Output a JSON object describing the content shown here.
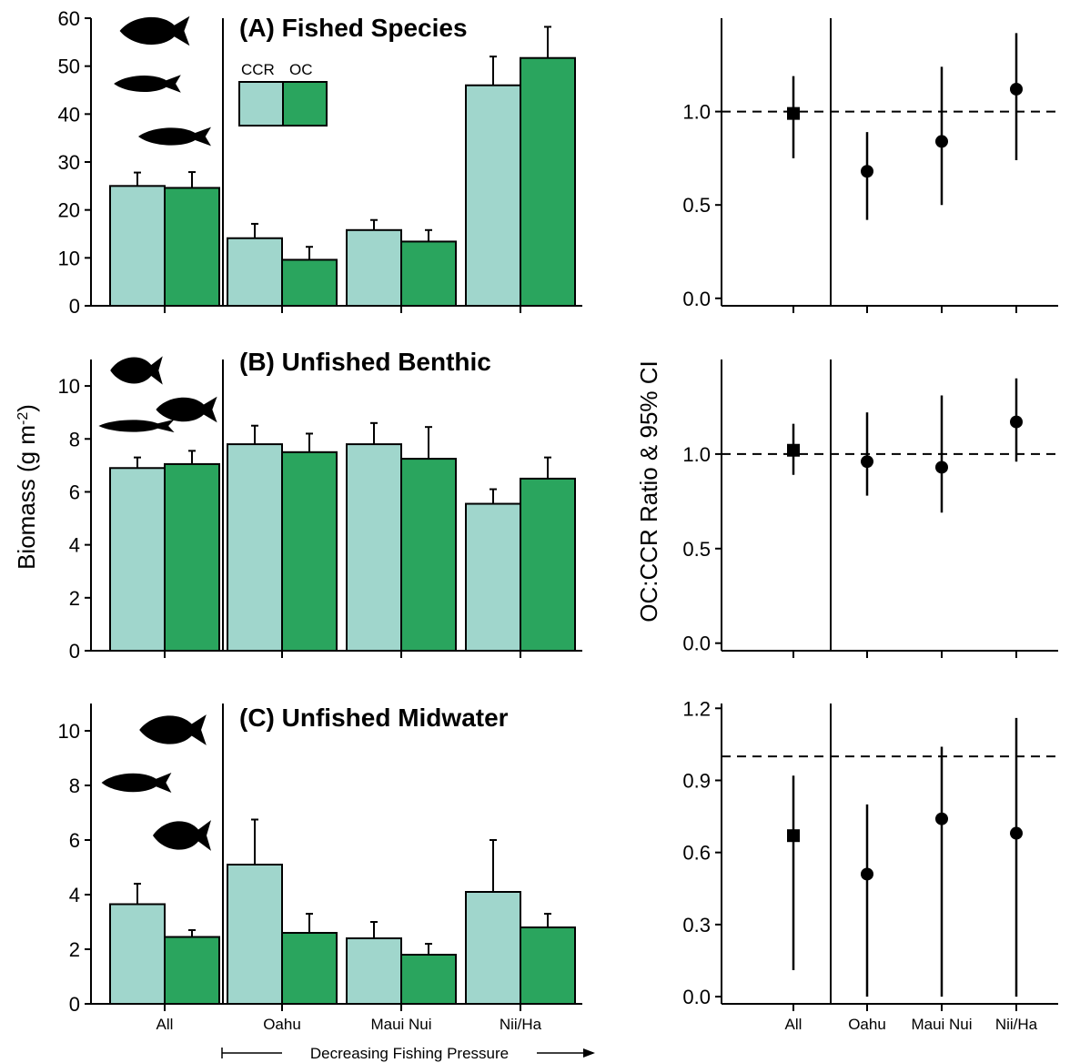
{
  "y_axis_label_left": "Biomass (g m",
  "y_axis_label_left_sup": "-2",
  "y_axis_label_left_close": ")",
  "y_axis_label_right": "OC:CCR Ratio & 95% CI",
  "fishing_pressure_label": "Decreasing Fishing Pressure",
  "legend": {
    "labels": [
      "CCR",
      "OC"
    ]
  },
  "colors": {
    "CCR": "#a0d6cc",
    "OC": "#2aa55e",
    "outline": "#000000"
  },
  "icons": [
    "fish-silhouette-icon"
  ],
  "chart_data": [
    {
      "type": "bar",
      "title": "(A) Fished Species",
      "categories": [
        "All",
        "Oahu",
        "Maui Nui",
        "Nii/Ha"
      ],
      "ylim": [
        0,
        60
      ],
      "yticks": [
        "0",
        "10",
        "20",
        "30",
        "40",
        "50",
        "60"
      ],
      "series": [
        {
          "name": "CCR",
          "values": [
            25.0,
            14.1,
            15.8,
            46.0
          ],
          "error_upper": [
            27.8,
            17.1,
            17.9,
            52.0
          ]
        },
        {
          "name": "OC",
          "values": [
            24.6,
            9.6,
            13.4,
            51.7
          ],
          "error_upper": [
            27.9,
            12.3,
            15.8,
            58.2
          ]
        }
      ]
    },
    {
      "type": "bar",
      "title": "(B) Unfished Benthic",
      "categories": [
        "All",
        "Oahu",
        "Maui Nui",
        "Nii/Ha"
      ],
      "ylim": [
        0,
        11
      ],
      "yticks": [
        "0",
        "2",
        "4",
        "6",
        "8",
        "10"
      ],
      "series": [
        {
          "name": "CCR",
          "values": [
            6.9,
            7.8,
            7.8,
            5.55
          ],
          "error_upper": [
            7.3,
            8.5,
            8.6,
            6.1
          ]
        },
        {
          "name": "OC",
          "values": [
            7.05,
            7.5,
            7.25,
            6.5
          ],
          "error_upper": [
            7.55,
            8.2,
            8.45,
            7.3
          ]
        }
      ]
    },
    {
      "type": "bar",
      "title": "(C) Unfished Midwater",
      "categories": [
        "All",
        "Oahu",
        "Maui Nui",
        "Nii/Ha"
      ],
      "ylim": [
        0,
        11
      ],
      "yticks": [
        "0",
        "2",
        "4",
        "6",
        "8",
        "10"
      ],
      "series": [
        {
          "name": "CCR",
          "values": [
            3.65,
            5.1,
            2.4,
            4.1
          ],
          "error_upper": [
            4.4,
            6.75,
            3.0,
            6.0
          ]
        },
        {
          "name": "OC",
          "values": [
            2.45,
            2.6,
            1.8,
            2.8
          ],
          "error_upper": [
            2.7,
            3.3,
            2.2,
            3.3
          ]
        }
      ]
    },
    {
      "type": "scatter",
      "categories": [
        "All",
        "Oahu",
        "Maui Nui",
        "Nii/Ha"
      ],
      "ylim": [
        -0.04,
        1.5
      ],
      "yticks": [
        "0.0",
        "0.5",
        "1.0"
      ],
      "reference_line": 1.0,
      "markers": [
        "square",
        "circle",
        "circle",
        "circle"
      ],
      "values": [
        0.99,
        0.68,
        0.84,
        1.12
      ],
      "ci_lower": [
        0.75,
        0.42,
        0.5,
        0.74
      ],
      "ci_upper": [
        1.19,
        0.89,
        1.24,
        1.42
      ]
    },
    {
      "type": "scatter",
      "categories": [
        "All",
        "Oahu",
        "Maui Nui",
        "Nii/Ha"
      ],
      "ylim": [
        -0.04,
        1.5
      ],
      "yticks": [
        "0.0",
        "0.5",
        "1.0"
      ],
      "reference_line": 1.0,
      "markers": [
        "square",
        "circle",
        "circle",
        "circle"
      ],
      "values": [
        1.02,
        0.96,
        0.93,
        1.17
      ],
      "ci_lower": [
        0.89,
        0.78,
        0.69,
        0.96
      ],
      "ci_upper": [
        1.16,
        1.22,
        1.31,
        1.4
      ]
    },
    {
      "type": "scatter",
      "categories": [
        "All",
        "Oahu",
        "Maui Nui",
        "Nii/Ha"
      ],
      "ylim": [
        -0.03,
        1.22
      ],
      "yticks": [
        "0.0",
        "0.3",
        "0.6",
        "0.9",
        "1.2"
      ],
      "reference_line": 1.0,
      "markers": [
        "square",
        "circle",
        "circle",
        "circle"
      ],
      "values": [
        0.67,
        0.51,
        0.74,
        0.68
      ],
      "ci_lower": [
        0.11,
        0.0,
        0.0,
        0.0
      ],
      "ci_upper": [
        0.92,
        0.8,
        1.04,
        1.16
      ]
    }
  ]
}
